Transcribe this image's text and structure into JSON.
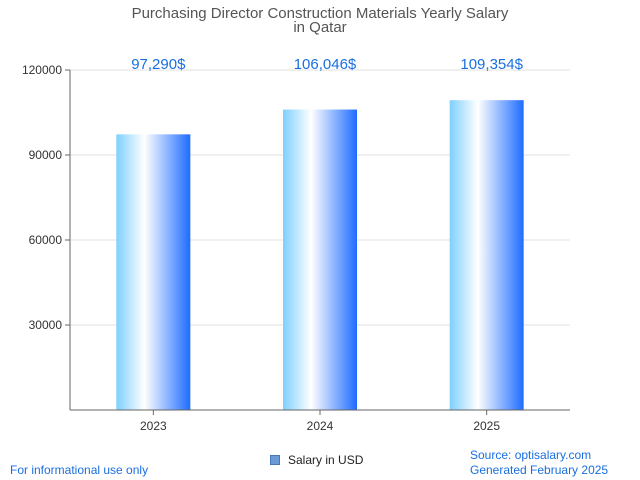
{
  "chart_data": {
    "type": "bar",
    "title_lines": [
      "Purchasing Director Construction Materials Yearly Salary",
      "in Qatar"
    ],
    "categories": [
      "2023",
      "2024",
      "2025"
    ],
    "series": [
      {
        "name": "Salary in USD",
        "values": [
          97290,
          106046,
          109354
        ]
      }
    ],
    "value_labels": [
      "97,290$",
      "106,046$",
      "109,354$"
    ],
    "y_ticks": [
      "30000",
      "60000",
      "90000",
      "120000"
    ],
    "ylim": [
      0,
      120000
    ],
    "grid": true,
    "legend_position": "bottom-center",
    "colors": {
      "bar_left": "#7fd0ff",
      "bar_mid": "#ffffff",
      "bar_right": "#1e6cff",
      "label": "#1a6fe0"
    }
  },
  "footer": {
    "left": "For informational use only",
    "source": "Source: optisalary.com",
    "generated": "Generated February 2025"
  }
}
